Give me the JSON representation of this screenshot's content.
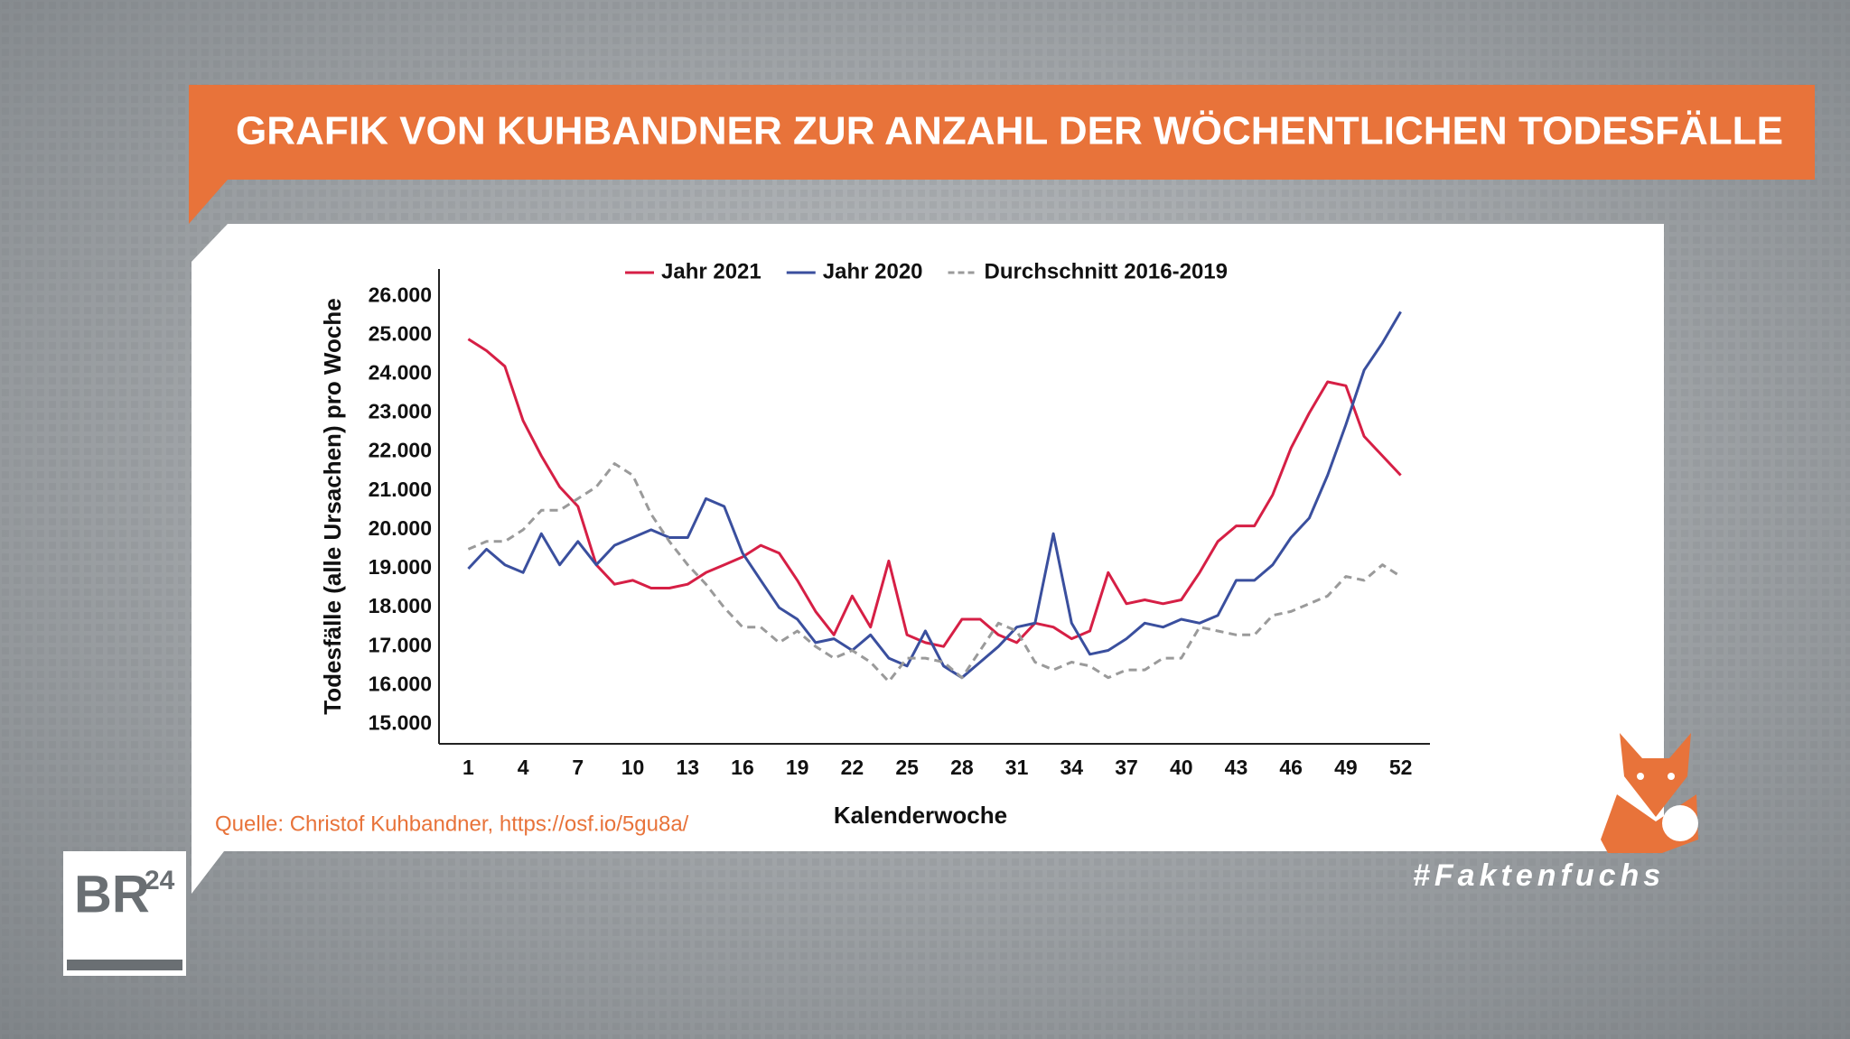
{
  "header": {
    "title": "GRAFIK VON KUHBANDNER ZUR ANZAHL DER WÖCHENTLICHEN TODESFÄLLE"
  },
  "source": "Quelle: Christof Kuhbandner, https://osf.io/5gu8a/",
  "logo": {
    "text": "BR",
    "superscript": "24"
  },
  "hashtag": "#Faktenfuchs",
  "chart_data": {
    "type": "line",
    "x_label": "Kalenderwoche",
    "y_label": "Todesfälle (alle Ursachen) pro Woche",
    "x": [
      1,
      2,
      3,
      4,
      5,
      6,
      7,
      8,
      9,
      10,
      11,
      12,
      13,
      14,
      15,
      16,
      17,
      18,
      19,
      20,
      21,
      22,
      23,
      24,
      25,
      26,
      27,
      28,
      29,
      30,
      31,
      32,
      33,
      34,
      35,
      36,
      37,
      38,
      39,
      40,
      41,
      42,
      43,
      44,
      45,
      46,
      47,
      48,
      49,
      50,
      51,
      52
    ],
    "xlim": [
      -0.6,
      53.6
    ],
    "xticks": [
      1,
      4,
      7,
      10,
      13,
      16,
      19,
      22,
      25,
      28,
      31,
      34,
      37,
      40,
      43,
      46,
      49,
      52
    ],
    "ylim": [
      14500,
      26700
    ],
    "yticks": [
      {
        "value": 15000,
        "label": "15.000"
      },
      {
        "value": 16000,
        "label": "16.000"
      },
      {
        "value": 17000,
        "label": "17.000"
      },
      {
        "value": 18000,
        "label": "18.000"
      },
      {
        "value": 19000,
        "label": "19.000"
      },
      {
        "value": 20000,
        "label": "20.000"
      },
      {
        "value": 21000,
        "label": "21.000"
      },
      {
        "value": 22000,
        "label": "22.000"
      },
      {
        "value": 23000,
        "label": "23.000"
      },
      {
        "value": 24000,
        "label": "24.000"
      },
      {
        "value": 25000,
        "label": "25.000"
      },
      {
        "value": 26000,
        "label": "26.000"
      }
    ],
    "grid": false,
    "series": [
      {
        "name": "Jahr 2021",
        "color": "#d61f45",
        "line_style": "solid",
        "values": [
          24900,
          24600,
          24200,
          22800,
          21900,
          21100,
          20600,
          19100,
          18600,
          18700,
          18500,
          18500,
          18600,
          18900,
          19100,
          19300,
          19600,
          19400,
          18700,
          17900,
          17300,
          18300,
          17500,
          19200,
          17300,
          17100,
          17000,
          17700,
          17700,
          17300,
          17100,
          17600,
          17500,
          17200,
          17400,
          18900,
          18100,
          18200,
          18100,
          18200,
          18900,
          19700,
          20100,
          20100,
          20900,
          22100,
          23000,
          23800,
          23700,
          22400,
          21900,
          21400
        ]
      },
      {
        "name": "Jahr 2020",
        "color": "#3a4f9e",
        "line_style": "solid",
        "values": [
          19000,
          19500,
          19100,
          18900,
          19900,
          19100,
          19700,
          19100,
          19600,
          19800,
          20000,
          19800,
          19800,
          20800,
          20600,
          19400,
          18700,
          18000,
          17700,
          17100,
          17200,
          16900,
          17300,
          16700,
          16500,
          17400,
          16500,
          16200,
          16600,
          17000,
          17500,
          17600,
          19900,
          17600,
          16800,
          16900,
          17200,
          17600,
          17500,
          17700,
          17600,
          17800,
          18700,
          18700,
          19100,
          19800,
          20300,
          21400,
          22700,
          24100,
          24800,
          25600
        ]
      },
      {
        "name": "Durchschnitt 2016-2019",
        "color": "#9a9a9a",
        "line_style": "dashed",
        "values": [
          19500,
          19700,
          19700,
          20000,
          20500,
          20500,
          20800,
          21100,
          21700,
          21400,
          20400,
          19700,
          19100,
          18600,
          18000,
          17500,
          17500,
          17100,
          17400,
          17000,
          16700,
          16900,
          16600,
          16100,
          16700,
          16700,
          16600,
          16200,
          16900,
          17600,
          17400,
          16600,
          16400,
          16600,
          16500,
          16200,
          16400,
          16400,
          16700,
          16700,
          17500,
          17400,
          17300,
          17300,
          17800,
          17900,
          18100,
          18300,
          18800,
          18700,
          19100,
          18800
        ]
      }
    ]
  }
}
